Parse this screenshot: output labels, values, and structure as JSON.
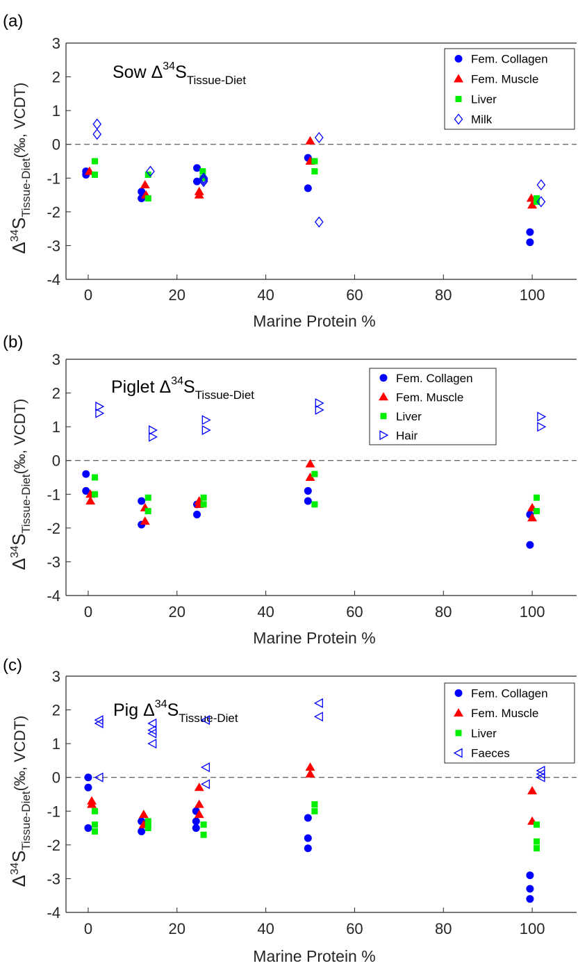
{
  "colors": {
    "collagen": "#0000ff",
    "muscle": "#ff0000",
    "liver": "#00ee00",
    "open": "#0000ff"
  },
  "chart_data": [
    {
      "type": "scatter",
      "panel_label": "(a)",
      "title": {
        "main": "Sow Δ",
        "sup": "34",
        "base": "S",
        "sub": "Tissue-Diet"
      },
      "ylabel": {
        "delta": "Δ",
        "sup": "34",
        "s": "S",
        "sub": "Tissue-Diet",
        "unit": "(‰, VCDT)"
      },
      "xlabel": "Marine Protein %",
      "xlim": [
        -5,
        110
      ],
      "ylim": [
        -4,
        3
      ],
      "xticks": [
        0,
        20,
        40,
        60,
        80,
        100
      ],
      "yticks": [
        -4,
        -3,
        -2,
        -1,
        0,
        1,
        2,
        3
      ],
      "legend_position": "top-right",
      "series": [
        {
          "name": "Fem. Collagen",
          "marker": "circle",
          "color": "#0000ff",
          "x": [
            -0.5,
            -0.5,
            12,
            12,
            24.5,
            24.5,
            49.5,
            49.5,
            99.5,
            99.5
          ],
          "y": [
            -0.8,
            -0.9,
            -1.4,
            -1.6,
            -0.7,
            -1.1,
            -0.4,
            -1.3,
            -2.6,
            -2.9
          ]
        },
        {
          "name": "Fem. Muscle",
          "marker": "triangle",
          "color": "#ff0000",
          "x": [
            0.3,
            12.8,
            13,
            25,
            25,
            50,
            50,
            99.8,
            100
          ],
          "y": [
            -0.8,
            -1.2,
            -1.5,
            -1.4,
            -1.5,
            0.1,
            -0.5,
            -1.6,
            -1.8
          ]
        },
        {
          "name": "Liver",
          "marker": "square",
          "color": "#00ee00",
          "x": [
            1.5,
            1.5,
            13.5,
            13.5,
            25.8,
            25.8,
            51,
            51,
            101,
            101
          ],
          "y": [
            -0.5,
            -0.9,
            -0.9,
            -1.6,
            -0.8,
            -1.0,
            -0.5,
            -0.8,
            -1.6,
            -1.7
          ]
        },
        {
          "name": "Milk",
          "marker": "diamond-open",
          "color": "#0000ff",
          "x": [
            2,
            2,
            14,
            26,
            26,
            26,
            52,
            52,
            102,
            102
          ],
          "y": [
            0.6,
            0.3,
            -0.8,
            -1.0,
            -1.1,
            -1.05,
            0.2,
            -2.3,
            -1.2,
            -1.7
          ]
        }
      ]
    },
    {
      "type": "scatter",
      "panel_label": "(b)",
      "title": {
        "main": "Piglet Δ",
        "sup": "34",
        "base": "S",
        "sub": "Tissue-Diet"
      },
      "ylabel": {
        "delta": "Δ",
        "sup": "34",
        "s": "S",
        "sub": "Tissue-Diet",
        "unit": "(‰, VCDT)"
      },
      "xlabel": "Marine Protein %",
      "xlim": [
        -5,
        110
      ],
      "ylim": [
        -4,
        3
      ],
      "xticks": [
        0,
        20,
        40,
        60,
        80,
        100
      ],
      "yticks": [
        -4,
        -3,
        -2,
        -1,
        0,
        1,
        2,
        3
      ],
      "legend_position": "top-right",
      "series": [
        {
          "name": "Fem. Collagen",
          "marker": "circle",
          "color": "#0000ff",
          "x": [
            -0.5,
            -0.5,
            12,
            12,
            24.5,
            24.5,
            49.5,
            49.5,
            99.5,
            99.5
          ],
          "y": [
            -0.4,
            -0.9,
            -1.2,
            -1.9,
            -1.3,
            -1.6,
            -0.9,
            -1.2,
            -1.6,
            -2.5
          ]
        },
        {
          "name": "Fem. Muscle",
          "marker": "triangle",
          "color": "#ff0000",
          "x": [
            0.5,
            0.5,
            12.8,
            12.8,
            25,
            25,
            50,
            50,
            100,
            100
          ],
          "y": [
            -1.0,
            -1.2,
            -1.4,
            -1.8,
            -1.2,
            -1.3,
            -0.1,
            -0.5,
            -1.4,
            -1.7
          ]
        },
        {
          "name": "Liver",
          "marker": "square",
          "color": "#00ee00",
          "x": [
            1.5,
            1.5,
            13.5,
            13.5,
            26,
            26,
            51,
            51,
            101,
            101
          ],
          "y": [
            -0.5,
            -1.0,
            -1.1,
            -1.5,
            -1.1,
            -1.3,
            -0.4,
            -1.3,
            -1.1,
            -1.5
          ]
        },
        {
          "name": "Hair",
          "marker": "triangle-right-open",
          "color": "#0000ff",
          "x": [
            2.5,
            2.5,
            14.5,
            14.5,
            26.5,
            26.5,
            52,
            52,
            102,
            102
          ],
          "y": [
            1.6,
            1.4,
            0.9,
            0.7,
            1.2,
            0.9,
            1.7,
            1.5,
            1.3,
            1.0
          ]
        }
      ]
    },
    {
      "type": "scatter",
      "panel_label": "(c)",
      "title": {
        "main": "Pig Δ",
        "sup": "34",
        "base": "S",
        "sub": "Tissue-Diet"
      },
      "ylabel": {
        "delta": "Δ",
        "sup": "34",
        "s": "S",
        "sub": "Tissue-Diet",
        "unit": "(‰, VCDT)"
      },
      "xlabel": "Marine Protein %",
      "xlim": [
        -5,
        110
      ],
      "ylim": [
        -4,
        3
      ],
      "xticks": [
        0,
        20,
        40,
        60,
        80,
        100
      ],
      "yticks": [
        -4,
        -3,
        -2,
        -1,
        0,
        1,
        2,
        3
      ],
      "legend_position": "top-right",
      "series": [
        {
          "name": "Fem. Collagen",
          "marker": "circle",
          "color": "#0000ff",
          "x": [
            0,
            0,
            0,
            12,
            12,
            24.3,
            24.3,
            24.3,
            49.5,
            49.5,
            49.5,
            99.5,
            99.5,
            99.5
          ],
          "y": [
            0.0,
            -0.3,
            -1.5,
            -1.3,
            -1.6,
            -1.0,
            -1.3,
            -1.5,
            -1.2,
            -1.8,
            -2.1,
            -2.9,
            -3.3,
            -3.6
          ]
        },
        {
          "name": "Fem. Muscle",
          "marker": "triangle",
          "color": "#ff0000",
          "x": [
            0.8,
            0.8,
            12.5,
            12.5,
            25,
            25,
            25,
            50,
            50,
            100,
            100
          ],
          "y": [
            -0.7,
            -0.8,
            -1.1,
            -1.4,
            -0.3,
            -0.8,
            -1.1,
            0.3,
            0.1,
            -0.4,
            -1.3
          ]
        },
        {
          "name": "Liver",
          "marker": "square",
          "color": "#00ee00",
          "x": [
            1.5,
            1.5,
            1.5,
            13.5,
            13.5,
            13.5,
            26,
            26,
            51,
            51,
            101,
            101,
            101
          ],
          "y": [
            -1.0,
            -1.4,
            -1.6,
            -1.3,
            -1.4,
            -1.5,
            -1.4,
            -1.7,
            -0.8,
            -1.0,
            -1.4,
            -1.9,
            -2.1
          ]
        },
        {
          "name": "Faeces",
          "marker": "triangle-left-open",
          "color": "#0000ff",
          "x": [
            2.5,
            2.5,
            2.5,
            14.5,
            14.5,
            14.5,
            14.5,
            26.5,
            26.5,
            26.5,
            52,
            52,
            102,
            102,
            102
          ],
          "y": [
            1.7,
            1.6,
            0.0,
            1.6,
            1.3,
            1.0,
            1.4,
            1.7,
            0.3,
            -0.2,
            2.2,
            1.8,
            0.2,
            0.1,
            0.0
          ]
        }
      ]
    }
  ]
}
